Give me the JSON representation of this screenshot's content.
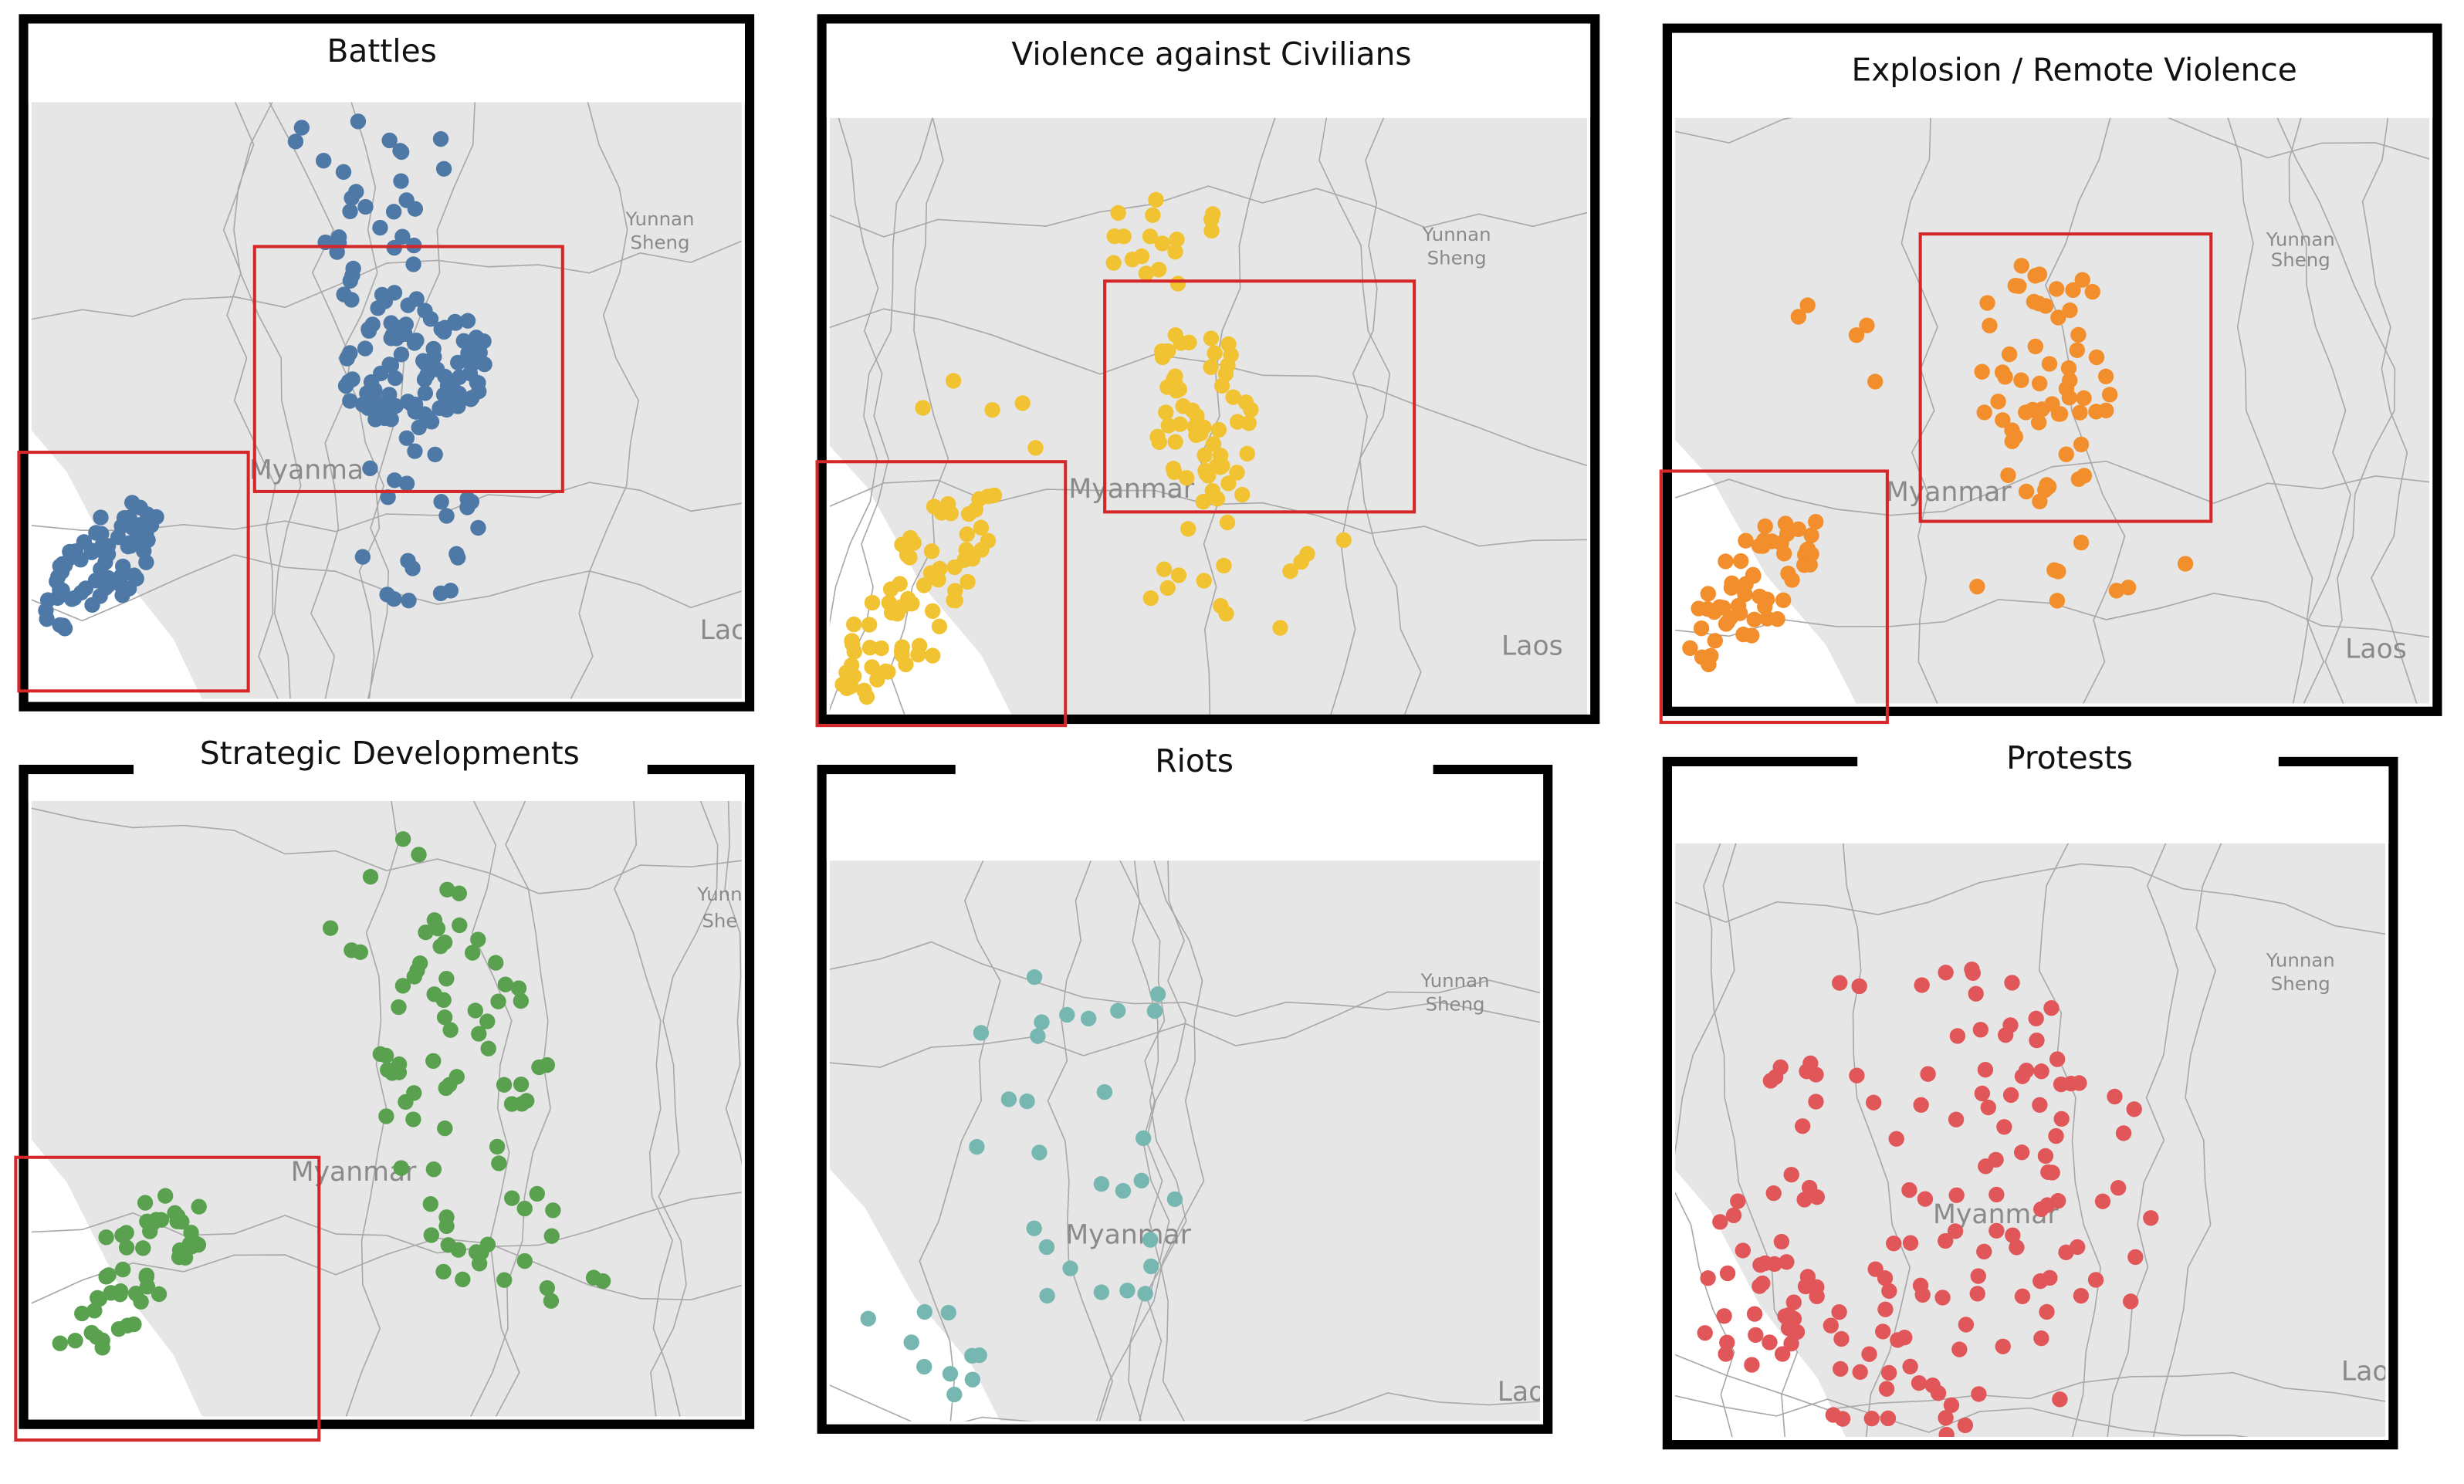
{
  "panels": [
    {
      "title": "Battles",
      "color": "#4e79a7",
      "labels": [
        "Yunnan",
        "Sheng",
        "Myanma",
        "Lac"
      ]
    },
    {
      "title": "Violence against Civilians",
      "color": "#f1c232",
      "labels": [
        "Yunnan",
        "Sheng",
        "Myanmar",
        "Laos"
      ]
    },
    {
      "title": "Explosion / Remote Violence",
      "color": "#f28e2b",
      "labels": [
        "Yunnan",
        "Sheng",
        "Myanmar",
        "Laos"
      ]
    },
    {
      "title": "Strategic Developments",
      "color": "#59a14f",
      "labels": [
        "Yunn",
        "She",
        "Myanmar"
      ]
    },
    {
      "title": "Riots",
      "color": "#76b7b2",
      "labels": [
        "Yunnan",
        "Sheng",
        "Myanmar",
        "Lao"
      ]
    },
    {
      "title": "Protests",
      "color": "#e15759",
      "labels": [
        "Yunnan",
        "Sheng",
        "Myanmar",
        "Lao"
      ]
    }
  ]
}
